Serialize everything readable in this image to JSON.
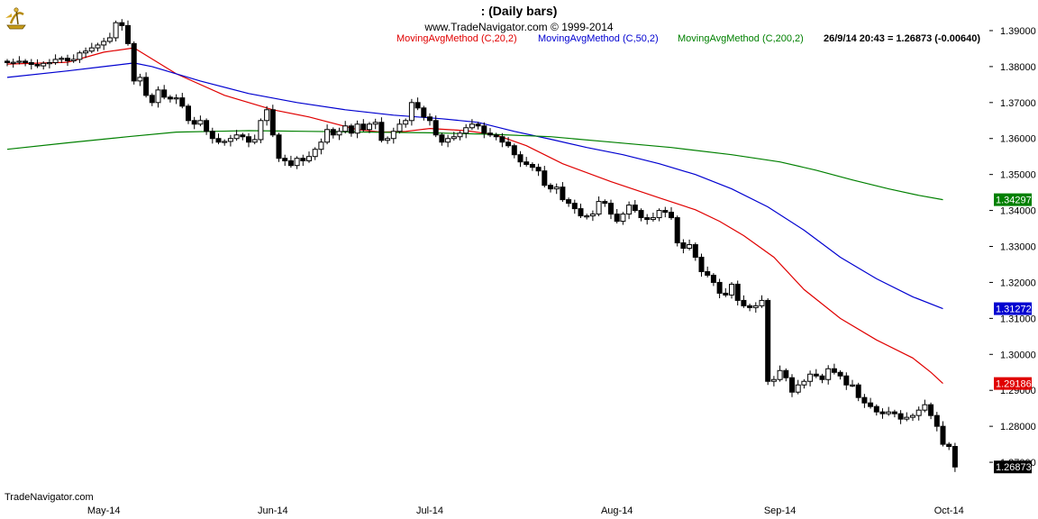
{
  "header": {
    "title": ":    (Daily bars)",
    "copyright": "www.TradeNavigator.com © 1999-2014",
    "legend": [
      {
        "label": "MovingAvgMethod (C,20,2)",
        "color": "#e00000"
      },
      {
        "label": "MovingAvgMethod (C,50,2)",
        "color": "#0000d0"
      },
      {
        "label": "MovingAvgMethod (C,200,2)",
        "color": "#008000"
      }
    ],
    "status": "26/9/14 20:43 = 1.26873 (-0.00640)"
  },
  "footer": {
    "brand": "TradeNavigator.com"
  },
  "icons": {
    "logo": "sextant-logo-icon"
  },
  "chart_data": {
    "type": "candlestick",
    "ylim": [
      1.2635,
      1.3935
    ],
    "y_ticks": [
      1.39,
      1.38,
      1.37,
      1.36,
      1.35,
      1.34,
      1.33,
      1.32,
      1.31,
      1.3,
      1.29,
      1.28,
      1.27
    ],
    "y_tick_labels": [
      "1.39000",
      "1.38000",
      "1.37000",
      "1.36000",
      "1.35000",
      "1.34000",
      "1.33000",
      "1.32000",
      "1.31000",
      "1.30000",
      "1.29000",
      "1.28000",
      "1.27000"
    ],
    "x_labels": [
      {
        "label": "May-14",
        "index": 16
      },
      {
        "label": "Jun-14",
        "index": 44
      },
      {
        "label": "Jul-14",
        "index": 70
      },
      {
        "label": "Aug-14",
        "index": 101
      },
      {
        "label": "Sep-14",
        "index": 128
      },
      {
        "label": "Oct-14",
        "index": 156
      }
    ],
    "candles_close": [
      1.3811,
      1.3812,
      1.3815,
      1.3811,
      1.3806,
      1.3802,
      1.3809,
      1.3811,
      1.382,
      1.3823,
      1.3816,
      1.382,
      1.3838,
      1.3843,
      1.3852,
      1.386,
      1.387,
      1.388,
      1.3922,
      1.3914,
      1.3864,
      1.376,
      1.377,
      1.372,
      1.37,
      1.3735,
      1.3715,
      1.371,
      1.3713,
      1.369,
      1.365,
      1.364,
      1.365,
      1.362,
      1.36,
      1.359,
      1.3592,
      1.36,
      1.361,
      1.3605,
      1.359,
      1.3597,
      1.365,
      1.368,
      1.361,
      1.3545,
      1.3538,
      1.3525,
      1.3545,
      1.3538,
      1.355,
      1.357,
      1.359,
      1.3625,
      1.361,
      1.362,
      1.3635,
      1.3615,
      1.364,
      1.3625,
      1.364,
      1.3645,
      1.3595,
      1.36,
      1.362,
      1.364,
      1.365,
      1.37,
      1.3685,
      1.366,
      1.365,
      1.361,
      1.359,
      1.36,
      1.3605,
      1.3615,
      1.363,
      1.364,
      1.3635,
      1.3615,
      1.361,
      1.3605,
      1.359,
      1.358,
      1.3555,
      1.3535,
      1.3528,
      1.352,
      1.351,
      1.347,
      1.346,
      1.3465,
      1.343,
      1.342,
      1.3405,
      1.3385,
      1.3385,
      1.339,
      1.3425,
      1.342,
      1.339,
      1.337,
      1.339,
      1.3415,
      1.34,
      1.338,
      1.3375,
      1.338,
      1.34,
      1.3395,
      1.338,
      1.331,
      1.3295,
      1.3305,
      1.327,
      1.323,
      1.322,
      1.32,
      1.317,
      1.3165,
      1.3195,
      1.315,
      1.3135,
      1.313,
      1.3135,
      1.315,
      1.2925,
      1.293,
      1.2955,
      1.2935,
      1.2895,
      1.2915,
      1.2925,
      1.2945,
      1.294,
      1.293,
      1.296,
      1.295,
      1.294,
      1.2915,
      1.2915,
      1.288,
      1.2865,
      1.2855,
      1.284,
      1.2835,
      1.284,
      1.2835,
      1.282,
      1.2825,
      1.283,
      1.2845,
      1.286,
      1.283,
      1.28,
      1.275,
      1.2744,
      1.2687
    ],
    "series": [
      {
        "name": "MovingAvgMethod (C,20,2)",
        "color": "#e00000",
        "last_label": "1.29186",
        "points": [
          [
            0,
            1.3807
          ],
          [
            10,
            1.3812
          ],
          [
            16,
            1.384
          ],
          [
            21,
            1.3852
          ],
          [
            28,
            1.378
          ],
          [
            36,
            1.372
          ],
          [
            44,
            1.368
          ],
          [
            50,
            1.366
          ],
          [
            58,
            1.3625
          ],
          [
            62,
            1.3618
          ],
          [
            66,
            1.362
          ],
          [
            70,
            1.3628
          ],
          [
            76,
            1.3622
          ],
          [
            81,
            1.361
          ],
          [
            86,
            1.358
          ],
          [
            92,
            1.353
          ],
          [
            100,
            1.348
          ],
          [
            108,
            1.3435
          ],
          [
            114,
            1.3402
          ],
          [
            118,
            1.337
          ],
          [
            122,
            1.333
          ],
          [
            127,
            1.327
          ],
          [
            132,
            1.318
          ],
          [
            138,
            1.31
          ],
          [
            144,
            1.304
          ],
          [
            150,
            1.299
          ],
          [
            153,
            1.295
          ],
          [
            155,
            1.2919
          ]
        ]
      },
      {
        "name": "MovingAvgMethod (C,50,2)",
        "color": "#0000d0",
        "last_label": "1.31272",
        "points": [
          [
            0,
            1.377
          ],
          [
            10,
            1.3788
          ],
          [
            16,
            1.38
          ],
          [
            21,
            1.381
          ],
          [
            24,
            1.38
          ],
          [
            32,
            1.376
          ],
          [
            40,
            1.3725
          ],
          [
            48,
            1.37
          ],
          [
            56,
            1.368
          ],
          [
            64,
            1.3665
          ],
          [
            72,
            1.3655
          ],
          [
            78,
            1.3645
          ],
          [
            84,
            1.362
          ],
          [
            90,
            1.3598
          ],
          [
            96,
            1.3575
          ],
          [
            102,
            1.3555
          ],
          [
            108,
            1.353
          ],
          [
            114,
            1.35
          ],
          [
            120,
            1.346
          ],
          [
            126,
            1.341
          ],
          [
            132,
            1.3345
          ],
          [
            138,
            1.327
          ],
          [
            144,
            1.321
          ],
          [
            150,
            1.316
          ],
          [
            155,
            1.3127
          ]
        ]
      },
      {
        "name": "MovingAvgMethod (C,200,2)",
        "color": "#008000",
        "last_label": "1.34297",
        "points": [
          [
            0,
            1.357
          ],
          [
            10,
            1.3588
          ],
          [
            20,
            1.3605
          ],
          [
            28,
            1.3618
          ],
          [
            40,
            1.3622
          ],
          [
            50,
            1.362
          ],
          [
            60,
            1.3618
          ],
          [
            70,
            1.3616
          ],
          [
            80,
            1.3612
          ],
          [
            90,
            1.3605
          ],
          [
            100,
            1.359
          ],
          [
            110,
            1.3575
          ],
          [
            120,
            1.3555
          ],
          [
            128,
            1.3535
          ],
          [
            134,
            1.3512
          ],
          [
            140,
            1.3485
          ],
          [
            146,
            1.346
          ],
          [
            151,
            1.3442
          ],
          [
            155,
            1.343
          ]
        ]
      }
    ],
    "last_price_label": "1.26873",
    "last_price_color": "#000000"
  }
}
